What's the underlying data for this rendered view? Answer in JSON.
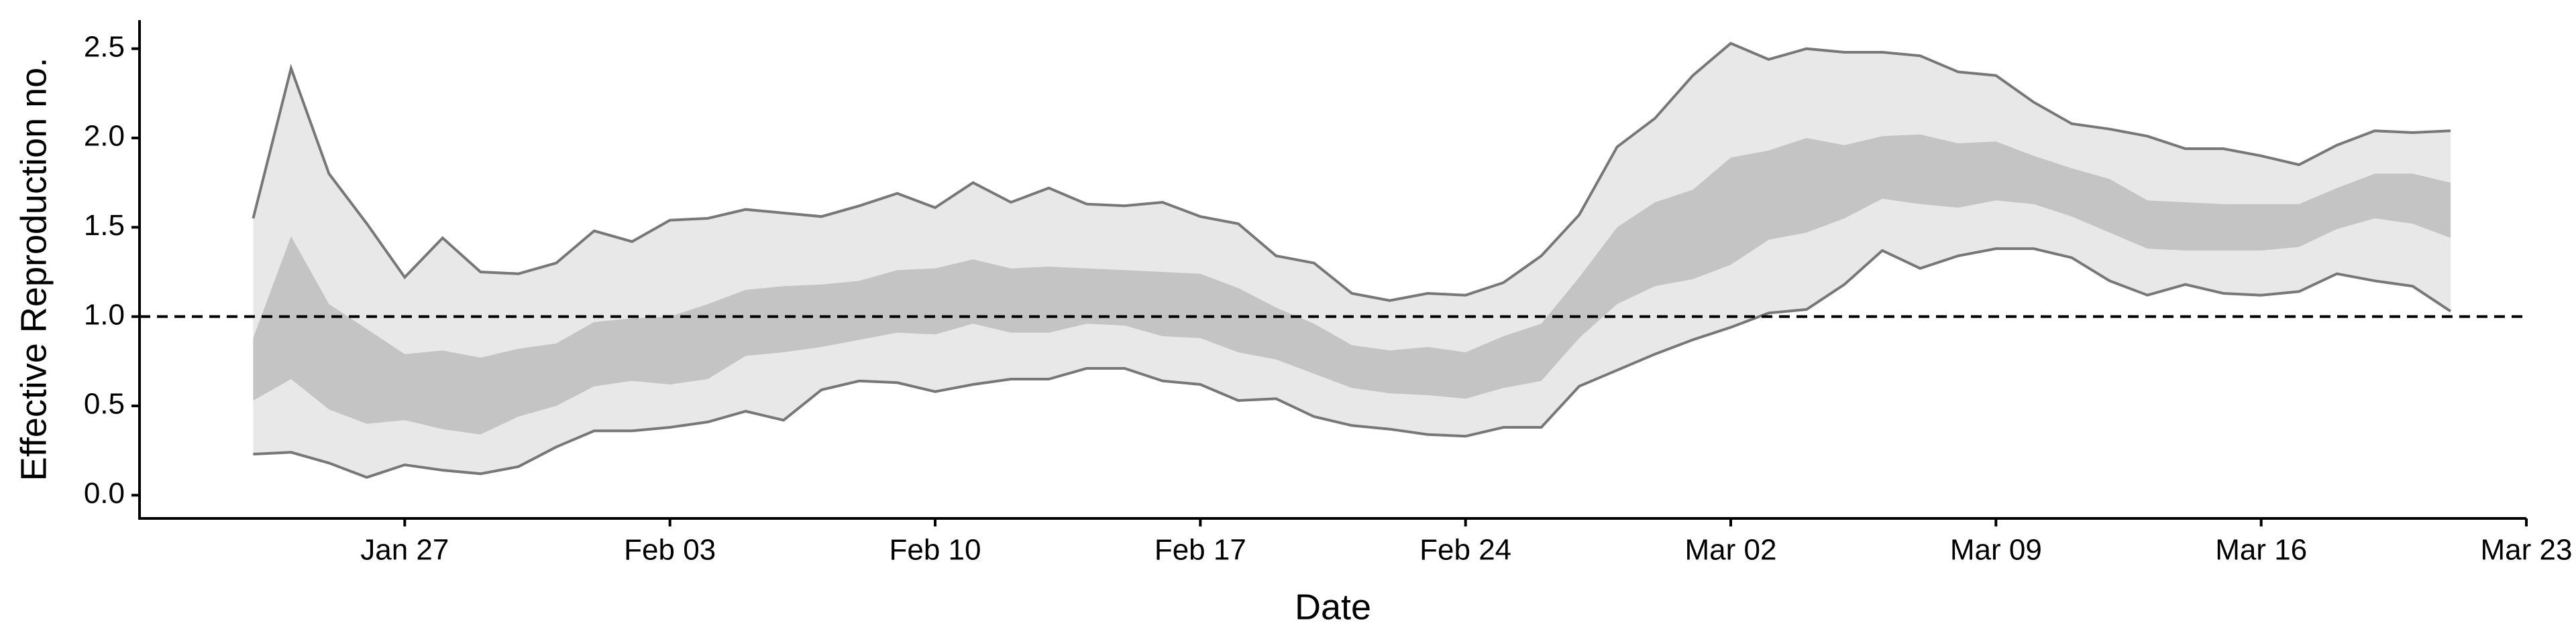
{
  "chart_data": {
    "type": "band",
    "x_label": "Date",
    "y_label": "Effective Reproduction no.",
    "x": [
      "Jan 23",
      "Jan 24",
      "Jan 25",
      "Jan 26",
      "Jan 27",
      "Jan 28",
      "Jan 29",
      "Jan 30",
      "Jan 31",
      "Feb 01",
      "Feb 02",
      "Feb 03",
      "Feb 04",
      "Feb 05",
      "Feb 06",
      "Feb 07",
      "Feb 08",
      "Feb 09",
      "Feb 10",
      "Feb 11",
      "Feb 12",
      "Feb 13",
      "Feb 14",
      "Feb 15",
      "Feb 16",
      "Feb 17",
      "Feb 18",
      "Feb 19",
      "Feb 20",
      "Feb 21",
      "Feb 22",
      "Feb 23",
      "Feb 24",
      "Feb 25",
      "Feb 26",
      "Feb 27",
      "Feb 28",
      "Feb 29",
      "Mar 01",
      "Mar 02",
      "Mar 03",
      "Mar 04",
      "Mar 05",
      "Mar 06",
      "Mar 07",
      "Mar 08",
      "Mar 09",
      "Mar 10",
      "Mar 11",
      "Mar 12",
      "Mar 13",
      "Mar 14",
      "Mar 15",
      "Mar 16",
      "Mar 17",
      "Mar 18",
      "Mar 19",
      "Mar 20",
      "Mar 21"
    ],
    "bands": [
      {
        "color": "#e8e8e8",
        "line_color": "#777777",
        "upper": [
          1.55,
          2.39,
          1.8,
          1.52,
          1.22,
          1.44,
          1.25,
          1.24,
          1.3,
          1.48,
          1.42,
          1.54,
          1.55,
          1.6,
          1.58,
          1.56,
          1.62,
          1.69,
          1.61,
          1.75,
          1.64,
          1.72,
          1.63,
          1.62,
          1.64,
          1.56,
          1.52,
          1.34,
          1.3,
          1.13,
          1.09,
          1.13,
          1.12,
          1.19,
          1.34,
          1.57,
          1.95,
          2.11,
          2.35,
          2.53,
          2.44,
          2.5,
          2.48,
          2.48,
          2.46,
          2.37,
          2.35,
          2.2,
          2.08,
          2.05,
          2.01,
          1.94,
          1.94,
          1.9,
          1.85,
          1.96,
          2.04,
          2.03,
          2.04
        ],
        "lower": [
          0.23,
          0.24,
          0.18,
          0.1,
          0.17,
          0.14,
          0.12,
          0.16,
          0.27,
          0.36,
          0.36,
          0.38,
          0.41,
          0.47,
          0.42,
          0.59,
          0.64,
          0.63,
          0.58,
          0.62,
          0.65,
          0.65,
          0.71,
          0.71,
          0.64,
          0.62,
          0.53,
          0.54,
          0.44,
          0.39,
          0.37,
          0.34,
          0.33,
          0.38,
          0.38,
          0.61,
          0.7,
          0.79,
          0.87,
          0.94,
          1.02,
          1.04,
          1.18,
          1.37,
          1.27,
          1.34,
          1.38,
          1.38,
          1.33,
          1.2,
          1.12,
          1.18,
          1.13,
          1.12,
          1.14,
          1.24,
          1.2,
          1.17,
          1.03
        ]
      },
      {
        "color": "#c4c4c4",
        "upper": [
          0.88,
          1.45,
          1.07,
          0.93,
          0.79,
          0.81,
          0.77,
          0.82,
          0.85,
          0.97,
          0.99,
          1.0,
          1.07,
          1.15,
          1.17,
          1.18,
          1.2,
          1.26,
          1.27,
          1.32,
          1.27,
          1.28,
          1.27,
          1.26,
          1.25,
          1.24,
          1.16,
          1.05,
          0.96,
          0.84,
          0.81,
          0.83,
          0.8,
          0.89,
          0.96,
          1.22,
          1.5,
          1.64,
          1.71,
          1.89,
          1.93,
          2.0,
          1.96,
          2.01,
          2.02,
          1.97,
          1.98,
          1.9,
          1.83,
          1.77,
          1.65,
          1.64,
          1.63,
          1.63,
          1.63,
          1.72,
          1.8,
          1.8,
          1.75
        ],
        "lower": [
          0.53,
          0.65,
          0.48,
          0.4,
          0.42,
          0.37,
          0.34,
          0.44,
          0.5,
          0.61,
          0.64,
          0.62,
          0.65,
          0.78,
          0.8,
          0.83,
          0.87,
          0.91,
          0.9,
          0.96,
          0.91,
          0.91,
          0.96,
          0.95,
          0.89,
          0.88,
          0.8,
          0.76,
          0.68,
          0.6,
          0.57,
          0.56,
          0.54,
          0.6,
          0.64,
          0.88,
          1.07,
          1.17,
          1.21,
          1.29,
          1.43,
          1.47,
          1.55,
          1.66,
          1.63,
          1.61,
          1.65,
          1.63,
          1.56,
          1.47,
          1.38,
          1.37,
          1.37,
          1.37,
          1.39,
          1.49,
          1.55,
          1.52,
          1.44
        ]
      }
    ],
    "reference_line": {
      "value": 1,
      "style": "dashed",
      "color": "#000000"
    },
    "xlim": [
      "Jan 20",
      "Mar 23"
    ],
    "xticks": [
      "Jan 27",
      "Feb 03",
      "Feb 10",
      "Feb 17",
      "Feb 24",
      "Mar 02",
      "Mar 09",
      "Mar 16",
      "Mar 23"
    ],
    "ylim": [
      -0.13,
      2.66
    ],
    "yticks": [
      {
        "value": 0,
        "label": "0.0"
      },
      {
        "value": 0.5,
        "label": "0.5"
      },
      {
        "value": 1,
        "label": "1.0"
      },
      {
        "value": 1.5,
        "label": "1.5"
      },
      {
        "value": 2,
        "label": "2.0"
      },
      {
        "value": 2.5,
        "label": "2.5"
      }
    ],
    "grid": false
  }
}
